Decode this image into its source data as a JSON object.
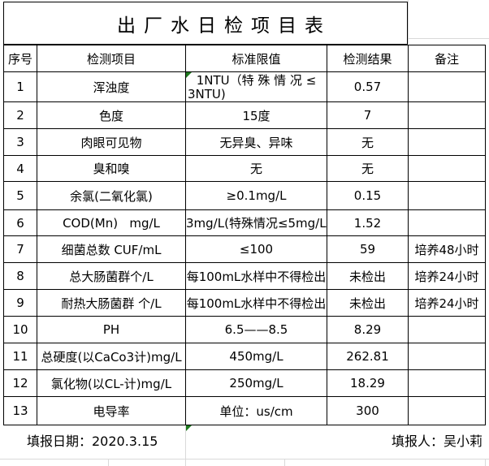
{
  "title": "出厂水日检项目表",
  "table": {
    "headers": [
      "序号",
      "检测项目",
      "标准限值",
      "检测结果",
      "备注"
    ],
    "rows": [
      {
        "no": "1",
        "item": "浑浊度",
        "limit_lines": [
          "1NTU（特 殊 情 况 ≤",
          "3NTU)"
        ],
        "result": "0.57",
        "note": ""
      },
      {
        "no": "2",
        "item": "色度",
        "limit_lines": [
          "15度"
        ],
        "result": "7",
        "note": ""
      },
      {
        "no": "3",
        "item": "肉眼可见物",
        "limit_lines": [
          "无异臭、异味"
        ],
        "result": "无",
        "note": ""
      },
      {
        "no": "4",
        "item": "臭和嗅",
        "limit_lines": [
          "无"
        ],
        "result": "无",
        "note": ""
      },
      {
        "no": "5",
        "item": "余氯(二氧化氯)",
        "limit_lines": [
          "≥0.1mg/L"
        ],
        "result": "0.15",
        "note": ""
      },
      {
        "no": "6",
        "item": "COD(Mn)   mg/L",
        "limit_lines": [
          "3mg/L(特殊情况≤5mg/L)"
        ],
        "result": "1.52",
        "note": ""
      },
      {
        "no": "7",
        "item": "细菌总数 CUF/mL",
        "limit_lines": [
          "≤100"
        ],
        "result": "59",
        "note": "培养48小时"
      },
      {
        "no": "8",
        "item": "总大肠菌群个/L",
        "limit_lines": [
          "每100mL水样中不得检出"
        ],
        "result": "未检出",
        "note": "培养24小时"
      },
      {
        "no": "9",
        "item": "耐热大肠菌群 个/L",
        "limit_lines": [
          "每100mL水样中不得检出"
        ],
        "result": "未检出",
        "note": "培养24小时"
      },
      {
        "no": "10",
        "item": "PH",
        "limit_lines": [
          "6.5——8.5"
        ],
        "result": "8.29",
        "note": ""
      },
      {
        "no": "11",
        "item": "总硬度(以CaCo3计)mg/L",
        "limit_lines": [
          "450mg/L"
        ],
        "result": "262.81",
        "note": ""
      },
      {
        "no": "12",
        "item": "氯化物(以CL-计)mg/L",
        "limit_lines": [
          "250mg/L"
        ],
        "result": "18.29",
        "note": ""
      },
      {
        "no": "13",
        "item": "电导率",
        "limit_lines": [
          "单位：us/cm"
        ],
        "result": "300",
        "note": ""
      }
    ]
  },
  "footer": {
    "date_label": "填报日期：2020.3.15",
    "reporter_label": "填报人：吴小莉"
  },
  "colors": {
    "table_border": "#000000",
    "sheet_gridline": "#d9d9d9",
    "comment_flag_green": "#1f7a1f",
    "text": "#000000",
    "background": "#ffffff"
  }
}
